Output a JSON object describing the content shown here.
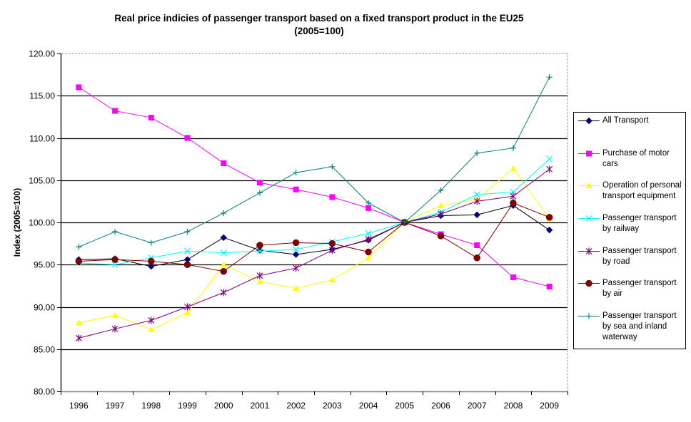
{
  "chart_data": {
    "type": "line",
    "title": "Real price indicies of passenger transport based on a fixed transport product in the EU25",
    "subtitle": "(2005=100)",
    "xlabel": "",
    "ylabel": "Index (2005=100)",
    "ylim": [
      80,
      120
    ],
    "y_ticks": [
      "80.00",
      "85.00",
      "90.00",
      "95.00",
      "100.00",
      "105.00",
      "110.00",
      "115.00",
      "120.00"
    ],
    "y_tick_values": [
      80,
      85,
      90,
      95,
      100,
      105,
      110,
      115,
      120
    ],
    "grid": true,
    "legend_position": "right",
    "categories": [
      "1996",
      "1997",
      "1998",
      "1999",
      "2000",
      "2001",
      "2002",
      "2003",
      "2004",
      "2005",
      "2006",
      "2007",
      "2008",
      "2009"
    ],
    "series": [
      {
        "name": "All Transport",
        "color": "#000080",
        "line_color": "#000000",
        "marker": "diamond",
        "values": [
          95.6,
          95.7,
          94.8,
          95.6,
          98.2,
          96.7,
          96.2,
          96.8,
          97.9,
          100.0,
          100.8,
          100.9,
          102.0,
          99.1
        ]
      },
      {
        "name": "Purchase of motor cars",
        "color": "#FF00FF",
        "line_color": "#FF00FF",
        "marker": "square",
        "values": [
          116.0,
          113.2,
          112.4,
          110.0,
          107.0,
          104.7,
          103.9,
          103.0,
          101.7,
          100.0,
          98.6,
          97.3,
          93.5,
          92.4
        ]
      },
      {
        "name": "Operation of personal transport equipment",
        "color": "#FFFF00",
        "line_color": "#FFFF00",
        "marker": "triangle",
        "values": [
          88.1,
          89.0,
          87.3,
          89.3,
          95.0,
          93.0,
          92.2,
          93.2,
          95.8,
          100.0,
          102.0,
          102.7,
          106.4,
          100.4
        ]
      },
      {
        "name": "Passenger transport by railway",
        "color": "#00FFFF",
        "line_color": "#00FFFF",
        "marker": "x",
        "values": [
          95.2,
          95.0,
          95.8,
          96.6,
          96.4,
          96.6,
          96.8,
          97.7,
          98.7,
          100.0,
          101.2,
          103.3,
          103.6,
          107.5
        ]
      },
      {
        "name": "Passenger transport by road",
        "color": "#800080",
        "line_color": "#800080",
        "marker": "star",
        "values": [
          86.3,
          87.4,
          88.4,
          90.0,
          91.7,
          93.7,
          94.6,
          96.7,
          98.0,
          100.0,
          101.0,
          102.5,
          103.1,
          106.3
        ]
      },
      {
        "name": "Passenger transport by air",
        "color": "#800000",
        "line_color": "#800000",
        "marker": "circle",
        "values": [
          95.4,
          95.6,
          95.4,
          95.0,
          94.2,
          97.3,
          97.6,
          97.5,
          96.5,
          100.0,
          98.4,
          95.8,
          102.3,
          100.6
        ]
      },
      {
        "name": "Passenger transport by sea and inland waterway",
        "color": "#008080",
        "line_color": "#008080",
        "marker": "plus",
        "values": [
          97.1,
          98.9,
          97.6,
          98.9,
          101.1,
          103.5,
          105.9,
          106.6,
          102.3,
          100.0,
          103.8,
          108.2,
          108.8,
          117.2
        ]
      }
    ]
  },
  "legend": {
    "items": [
      {
        "lines": [
          "All Transport"
        ]
      },
      {
        "lines": [
          "Purchase of motor",
          "cars"
        ]
      },
      {
        "lines": [
          "Operation of personal",
          "transport equipment"
        ]
      },
      {
        "lines": [
          "Passenger transport",
          "by railway"
        ]
      },
      {
        "lines": [
          "Passenger transport",
          "by road"
        ]
      },
      {
        "lines": [
          "Passenger transport",
          "by air"
        ]
      },
      {
        "lines": [
          "Passenger transport",
          "by sea and inland",
          "waterway"
        ]
      }
    ]
  }
}
